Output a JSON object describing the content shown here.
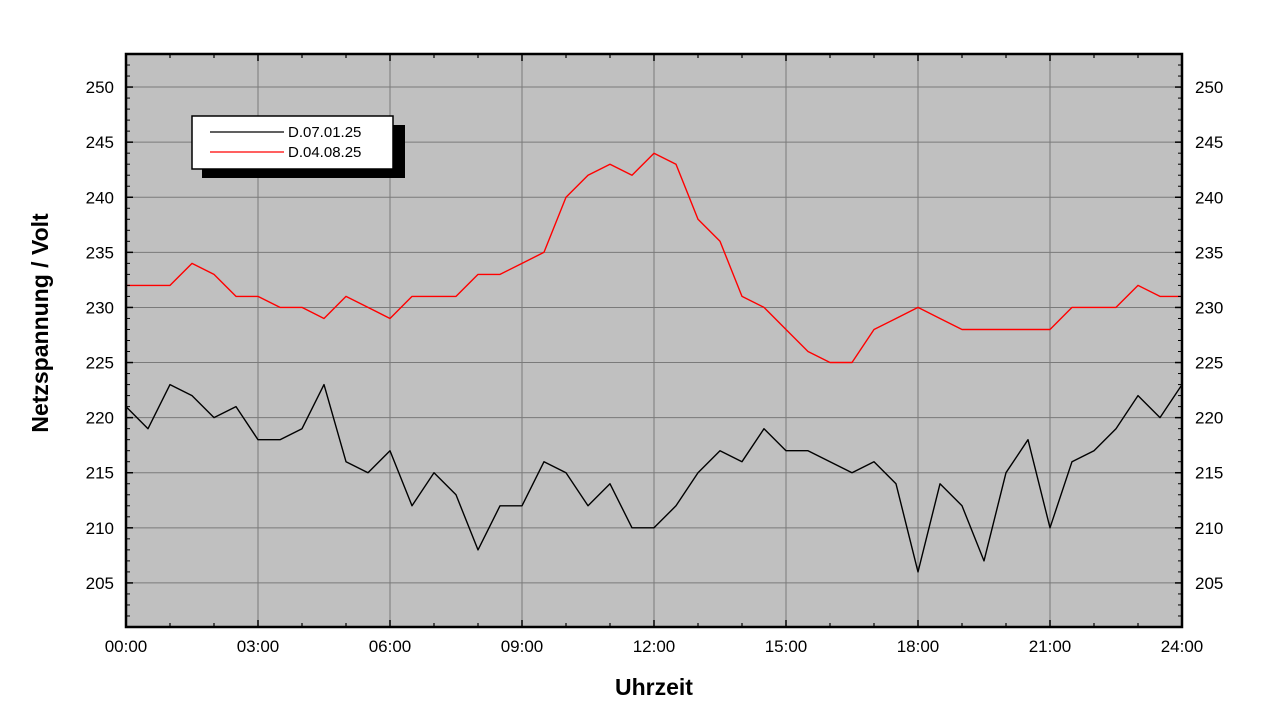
{
  "chart_data": {
    "type": "line",
    "xlabel": "Uhrzeit",
    "ylabel": "Netzspannung / Volt",
    "x_unit": "hours",
    "xlim": [
      0,
      24
    ],
    "ylim": [
      201,
      253
    ],
    "x_ticks": [
      "00:00",
      "03:00",
      "06:00",
      "09:00",
      "12:00",
      "15:00",
      "18:00",
      "21:00",
      "24:00"
    ],
    "y_ticks": [
      "205",
      "210",
      "215",
      "220",
      "225",
      "230",
      "235",
      "240",
      "245",
      "250"
    ],
    "grid": true,
    "legend_position": "top-left",
    "background": "#c0c0c0",
    "series": [
      {
        "name": "D.07.01.25",
        "color": "#000000",
        "x": [
          0,
          0.5,
          1,
          1.5,
          2,
          2.5,
          3,
          3.5,
          4,
          4.5,
          5,
          5.5,
          6,
          6.5,
          7,
          7.5,
          8,
          8.5,
          9,
          9.5,
          10,
          10.5,
          11,
          11.5,
          12,
          12.5,
          13,
          13.5,
          14,
          14.5,
          15,
          15.5,
          16,
          16.5,
          17,
          17.5,
          18,
          18.5,
          19,
          19.5,
          20,
          20.5,
          21,
          21.5,
          22,
          22.5,
          23,
          23.5,
          24
        ],
        "values": [
          221,
          219,
          223,
          222,
          220,
          221,
          218,
          218,
          219,
          223,
          216,
          215,
          217,
          212,
          215,
          213,
          208,
          212,
          212,
          216,
          215,
          212,
          214,
          210,
          210,
          212,
          215,
          217,
          216,
          219,
          217,
          217,
          216,
          215,
          216,
          214,
          206,
          214,
          212,
          207,
          215,
          218,
          210,
          216,
          217,
          219,
          222,
          220,
          223
        ]
      },
      {
        "name": "D.04.08.25",
        "color": "#ff0000",
        "x": [
          0,
          0.5,
          1,
          1.5,
          2,
          2.5,
          3,
          3.5,
          4,
          4.5,
          5,
          5.5,
          6,
          6.5,
          7,
          7.5,
          8,
          8.5,
          9,
          9.5,
          10,
          10.5,
          11,
          11.5,
          12,
          12.5,
          13,
          13.5,
          14,
          14.5,
          15,
          15.5,
          16,
          16.5,
          17,
          17.5,
          18,
          18.5,
          19,
          19.5,
          20,
          20.5,
          21,
          21.5,
          22,
          22.5,
          23,
          23.5,
          24
        ],
        "values": [
          232,
          232,
          232,
          234,
          233,
          231,
          231,
          230,
          230,
          229,
          231,
          230,
          229,
          231,
          231,
          231,
          233,
          233,
          234,
          235,
          240,
          242,
          243,
          242,
          244,
          243,
          238,
          236,
          231,
          230,
          228,
          226,
          225,
          225,
          228,
          229,
          230,
          229,
          228,
          228,
          228,
          228,
          228,
          230,
          230,
          230,
          232,
          231,
          231
        ]
      }
    ]
  }
}
